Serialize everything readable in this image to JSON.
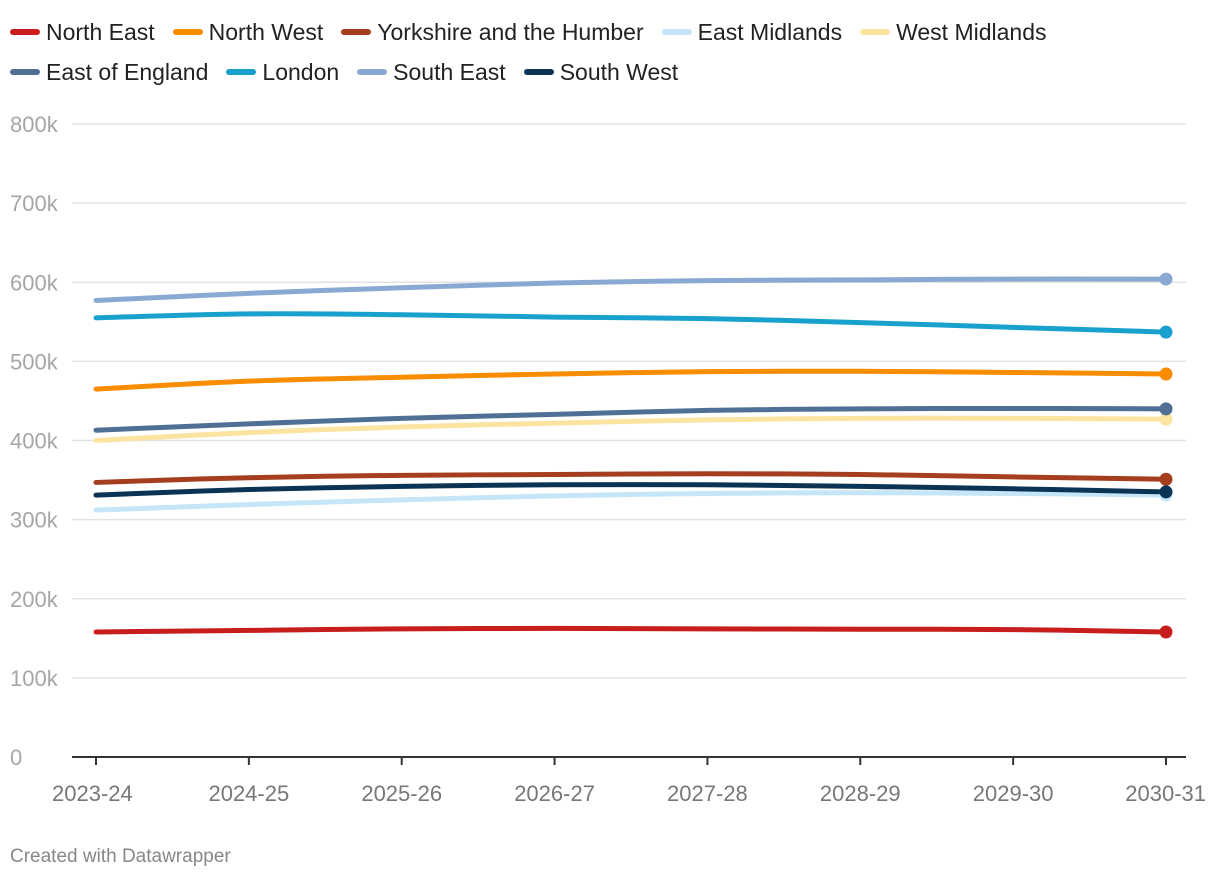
{
  "chart_data": {
    "type": "line",
    "x": [
      "2023-24",
      "2024-25",
      "2025-26",
      "2026-27",
      "2027-28",
      "2028-29",
      "2029-30",
      "2030-31"
    ],
    "ylim": [
      0,
      800000
    ],
    "yticks": [
      0,
      100000,
      200000,
      300000,
      400000,
      500000,
      600000,
      700000,
      800000
    ],
    "ytick_labels": [
      "0",
      "100k",
      "200k",
      "300k",
      "400k",
      "500k",
      "600k",
      "700k",
      "800k"
    ],
    "grid": true,
    "legend_position": "top",
    "series": [
      {
        "name": "North East",
        "color": "#c71e1d",
        "values": [
          158000,
          160000,
          162000,
          162500,
          162000,
          161500,
          161000,
          158000
        ]
      },
      {
        "name": "North West",
        "color": "#fa8c00",
        "values": [
          465000,
          475000,
          480000,
          484000,
          487000,
          487500,
          486000,
          484000
        ]
      },
      {
        "name": "Yorkshire and the Humber",
        "color": "#a43e1e",
        "values": [
          347000,
          353000,
          356000,
          357000,
          358000,
          357000,
          354000,
          351000
        ]
      },
      {
        "name": "East Midlands",
        "color": "#c4e6f8",
        "values": [
          312000,
          319000,
          325000,
          330000,
          333000,
          334000,
          333000,
          331000
        ]
      },
      {
        "name": "West Midlands",
        "color": "#fce4a0",
        "values": [
          400000,
          410000,
          417000,
          422000,
          426000,
          428000,
          428000,
          427000
        ]
      },
      {
        "name": "East of England",
        "color": "#4f6f94",
        "values": [
          413000,
          421000,
          428000,
          433000,
          438000,
          440000,
          440500,
          440000
        ]
      },
      {
        "name": "London",
        "color": "#18a1cd",
        "values": [
          555000,
          560000,
          559000,
          556000,
          554000,
          549000,
          543000,
          537000
        ]
      },
      {
        "name": "South East",
        "color": "#8aa9d2",
        "values": [
          577000,
          586000,
          593000,
          599000,
          602000,
          603000,
          604000,
          604000
        ]
      },
      {
        "name": "South West",
        "color": "#0b3454",
        "values": [
          331000,
          338000,
          342000,
          344000,
          344000,
          342000,
          339000,
          335000
        ]
      }
    ]
  },
  "credit": "Created with Datawrapper"
}
